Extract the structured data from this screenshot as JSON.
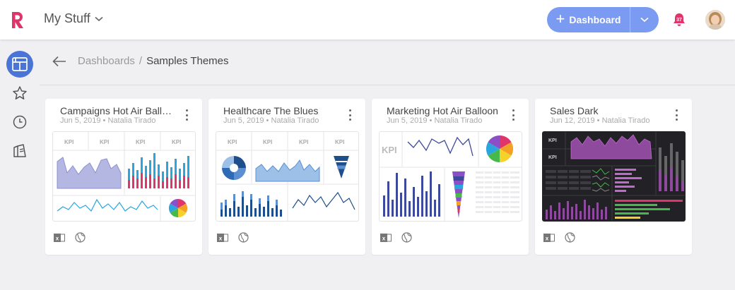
{
  "header": {
    "title": "My Stuff",
    "dashboard_button": "Dashboard",
    "notification_count": "37",
    "colors": {
      "brand": "#e0356b",
      "accent": "#7b9bf2"
    }
  },
  "sidebar": {
    "items": [
      {
        "icon": "dashboards-icon",
        "active": true
      },
      {
        "icon": "star-icon",
        "active": false
      },
      {
        "icon": "clock-icon",
        "active": false
      },
      {
        "icon": "library-icon",
        "active": false
      }
    ]
  },
  "breadcrumb": {
    "parent": "Dashboards",
    "separator": "/",
    "current": "Samples Themes"
  },
  "cards": [
    {
      "title": "Campaigns Hot Air Balloon",
      "meta": "Jun 5, 2019 • Natalia Tirado",
      "kpi": "KPI",
      "theme": "hot-air-balloon"
    },
    {
      "title": "Healthcare The Blues",
      "meta": "Jun 5, 2019 • Natalia Tirado",
      "kpi": "KPI",
      "theme": "blues"
    },
    {
      "title": "Marketing Hot Air Balloon",
      "meta": "Jun 5, 2019 • Natalia Tirado",
      "kpi": "KPI",
      "theme": "hot-air-balloon"
    },
    {
      "title": "Sales Dark",
      "meta": "Jun 12, 2019 • Natalia Tirado",
      "kpi": "KPI",
      "theme": "dark"
    }
  ]
}
